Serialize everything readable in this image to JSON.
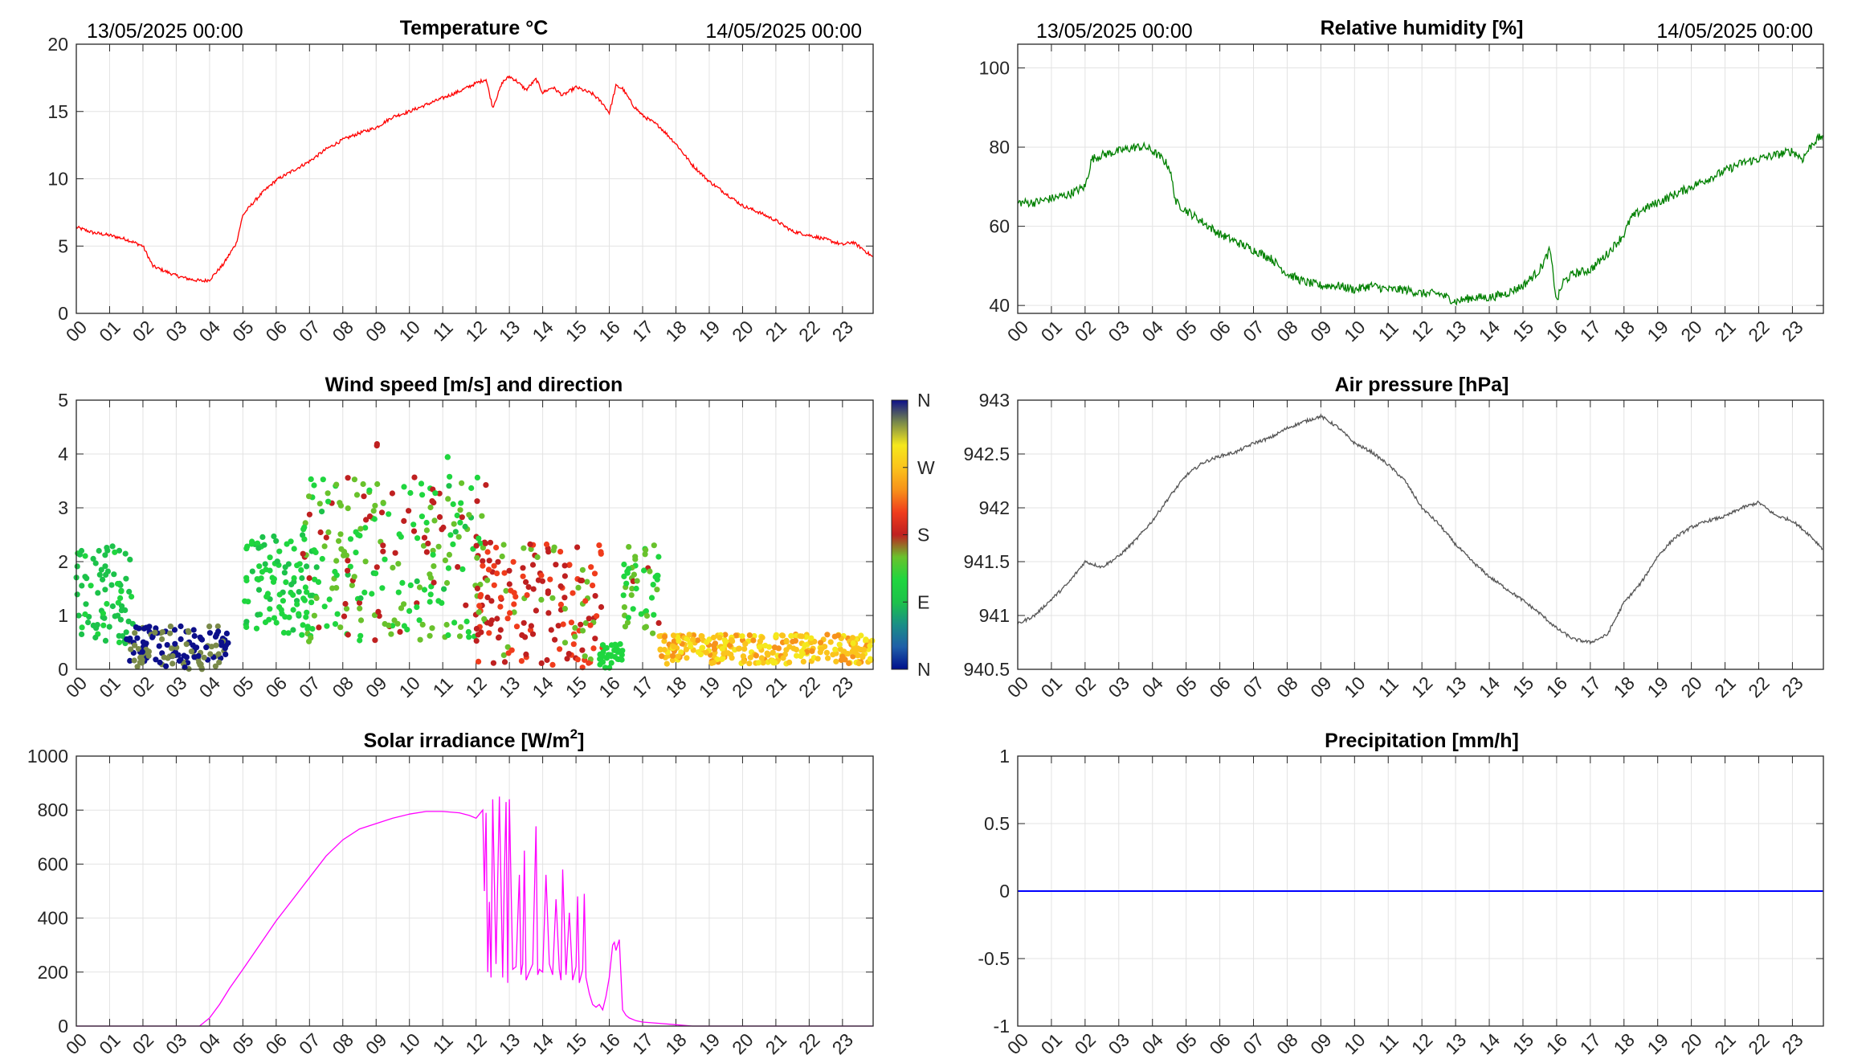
{
  "chart_data": [
    {
      "id": "temperature",
      "type": "line",
      "title": "Temperature °C",
      "date_start": "13/05/2025 00:00",
      "date_end": "14/05/2025 00:00",
      "x_unit": "hour",
      "xlim": [
        0,
        23.92
      ],
      "ylim": [
        0,
        20
      ],
      "yticks": [
        "0",
        "5",
        "10",
        "15",
        "20"
      ],
      "color": "#ff0000",
      "series": [
        {
          "x": [
            0,
            0.5,
            1,
            1.5,
            2,
            2.3,
            2.6,
            3,
            3.3,
            3.5,
            3.8,
            4,
            4.4,
            4.8,
            5,
            5.3,
            5.6,
            6,
            6.5,
            7,
            7.5,
            8,
            8.5,
            9,
            9.5,
            10,
            10.5,
            11,
            11.5,
            12,
            12.3,
            12.5,
            12.8,
            13,
            13.2,
            13.5,
            13.8,
            14,
            14.3,
            14.6,
            15,
            15.5,
            15.8,
            16,
            16.2,
            16.4,
            16.7,
            17,
            17.5,
            18,
            18.5,
            19,
            19.5,
            20,
            20.5,
            21,
            21.5,
            22,
            22.5,
            23,
            23.3,
            23.6,
            23.9
          ],
          "y": [
            6.4,
            6.0,
            5.8,
            5.5,
            5.0,
            3.5,
            3.2,
            2.8,
            2.6,
            2.5,
            2.4,
            2.5,
            3.6,
            5.2,
            7.3,
            8.2,
            9.0,
            9.9,
            10.6,
            11.3,
            12.2,
            12.9,
            13.4,
            13.8,
            14.6,
            15.0,
            15.5,
            16.0,
            16.5,
            17.1,
            17.4,
            15.3,
            17.2,
            17.6,
            17.3,
            16.6,
            17.4,
            16.4,
            16.8,
            16.2,
            16.8,
            16.3,
            15.6,
            14.9,
            16.9,
            16.7,
            15.5,
            14.7,
            13.9,
            12.6,
            11.0,
            9.8,
            8.9,
            8.0,
            7.5,
            6.9,
            6.1,
            5.8,
            5.5,
            5.1,
            5.3,
            4.8,
            4.2
          ]
        }
      ]
    },
    {
      "id": "humidity",
      "type": "line",
      "title": "Relative humidity [%]",
      "date_start": "13/05/2025 00:00",
      "date_end": "14/05/2025 00:00",
      "x_unit": "hour",
      "xlim": [
        0,
        23.92
      ],
      "ylim": [
        38,
        106
      ],
      "yticks": [
        "40",
        "60",
        "80",
        "100"
      ],
      "color": "#008000",
      "series": [
        {
          "x": [
            0,
            0.5,
            1,
            1.5,
            2,
            2.2,
            2.5,
            3,
            3.5,
            3.8,
            4,
            4.3,
            4.5,
            4.7,
            5,
            5.5,
            6,
            6.5,
            7,
            7.5,
            8,
            8.5,
            9,
            9.5,
            10,
            10.5,
            11,
            11.5,
            12,
            12.5,
            13,
            13.5,
            14,
            14.5,
            15,
            15.5,
            15.8,
            16,
            16.2,
            16.5,
            17,
            17.5,
            18,
            18.2,
            18.5,
            19,
            19.5,
            20,
            20.5,
            21,
            21.5,
            22,
            22.5,
            23,
            23.3,
            23.6,
            23.9
          ],
          "y": [
            66,
            66,
            67,
            68,
            70,
            77,
            78,
            79,
            80,
            80,
            79,
            77,
            75,
            66,
            64,
            61,
            58,
            56,
            54,
            52,
            48,
            46,
            45,
            45,
            44,
            45,
            44,
            44,
            43,
            43,
            41,
            42,
            42,
            43,
            45,
            49,
            54,
            41,
            46,
            48,
            49,
            53,
            58,
            62,
            64,
            66,
            68,
            70,
            72,
            74,
            76,
            77,
            78,
            79,
            77,
            81,
            83
          ]
        }
      ]
    },
    {
      "id": "wind",
      "type": "scatter",
      "title": "Wind speed [m/s] and direction",
      "x_unit": "hour",
      "xlim": [
        0,
        23.92
      ],
      "ylim": [
        0,
        5
      ],
      "yticks": [
        "0",
        "1",
        "2",
        "3",
        "4",
        "5"
      ],
      "colorbar": {
        "labels": [
          "N",
          "W",
          "S",
          "E",
          "N"
        ],
        "colors": [
          "#000f8c",
          "#1f5fa8",
          "#1a8f86",
          "#1cc24a",
          "#1fd63f",
          "#69c22c",
          "#bf2020",
          "#f03c1c",
          "#f7921a",
          "#fbc41c",
          "#f5e81c",
          "#7a8a4a",
          "#0c0f8a"
        ]
      },
      "segments": [
        {
          "x_start": 0.0,
          "x_end": 1.7,
          "y_min": 0.4,
          "y_max": 2.3,
          "dir_min": 80,
          "dir_max": 110
        },
        {
          "x_start": 1.5,
          "x_end": 4.6,
          "y_min": 0.0,
          "y_max": 0.8,
          "dir_min": 335,
          "dir_max": 355
        },
        {
          "x_start": 5.0,
          "x_end": 7.2,
          "y_min": 0.6,
          "y_max": 2.5,
          "dir_min": 95,
          "dir_max": 130
        },
        {
          "x_start": 6.8,
          "x_end": 12.3,
          "y_min": 0.5,
          "y_max": 3.6,
          "dir_min": 100,
          "dir_max": 185
        },
        {
          "x_start": 9.0,
          "x_end": 9.05,
          "y_min": 4.1,
          "y_max": 4.2,
          "dir_min": 170,
          "dir_max": 175
        },
        {
          "x_start": 11.1,
          "x_end": 11.15,
          "y_min": 3.9,
          "y_max": 4.0,
          "dir_min": 110,
          "dir_max": 115
        },
        {
          "x_start": 12.0,
          "x_end": 15.8,
          "y_min": 0.0,
          "y_max": 2.4,
          "dir_min": 150,
          "dir_max": 215
        },
        {
          "x_start": 15.7,
          "x_end": 16.4,
          "y_min": 0.0,
          "y_max": 0.5,
          "dir_min": 110,
          "dir_max": 120
        },
        {
          "x_start": 16.4,
          "x_end": 17.5,
          "y_min": 0.6,
          "y_max": 2.4,
          "dir_min": 105,
          "dir_max": 170
        },
        {
          "x_start": 17.5,
          "x_end": 23.9,
          "y_min": 0.1,
          "y_max": 0.65,
          "dir_min": 245,
          "dir_max": 300
        }
      ]
    },
    {
      "id": "pressure",
      "type": "line",
      "title": "Air pressure [hPa]",
      "x_unit": "hour",
      "xlim": [
        0,
        23.92
      ],
      "ylim": [
        940.5,
        943
      ],
      "yticks": [
        "940.5",
        "941",
        "941.5",
        "942",
        "942.5",
        "943"
      ],
      "color": "#555555",
      "series": [
        {
          "x": [
            0,
            0.5,
            1,
            1.5,
            2,
            2.5,
            3,
            3.5,
            4,
            4.5,
            5,
            5.5,
            6,
            6.5,
            7,
            7.5,
            8,
            8.5,
            9,
            9.5,
            10,
            10.5,
            11,
            11.5,
            12,
            12.5,
            13,
            13.5,
            14,
            14.5,
            15,
            15.5,
            16,
            16.5,
            17,
            17.5,
            18,
            18.5,
            19,
            19.5,
            20,
            20.5,
            21,
            21.5,
            22,
            22.5,
            23,
            23.5,
            23.9
          ],
          "y": [
            940.92,
            941.0,
            941.15,
            941.3,
            941.5,
            941.45,
            941.55,
            941.7,
            941.88,
            942.1,
            942.3,
            942.42,
            942.48,
            942.52,
            942.6,
            942.65,
            942.74,
            942.8,
            942.85,
            942.75,
            942.6,
            942.52,
            942.4,
            942.25,
            942.0,
            941.85,
            941.66,
            941.5,
            941.36,
            941.25,
            941.14,
            941.02,
            940.88,
            940.78,
            940.75,
            940.82,
            941.12,
            941.3,
            941.55,
            941.72,
            941.82,
            941.88,
            941.92,
            942.0,
            942.05,
            941.93,
            941.88,
            941.75,
            941.62
          ]
        }
      ]
    },
    {
      "id": "solar",
      "type": "line",
      "title": "Solar irradiance [W/m",
      "title_sup": "2",
      "title_end": "]",
      "x_unit": "hour",
      "xlim": [
        0,
        23.92
      ],
      "ylim": [
        0,
        1000
      ],
      "yticks": [
        "0",
        "200",
        "400",
        "600",
        "800",
        "1000"
      ],
      "color": "#ff00ff",
      "series": [
        {
          "x": [
            0,
            3.7,
            4.0,
            4.3,
            4.6,
            5.0,
            5.5,
            6.0,
            6.5,
            7.0,
            7.5,
            8.0,
            8.5,
            9.0,
            9.5,
            10.0,
            10.5,
            11.0,
            11.5,
            11.8,
            12.0,
            12.2,
            12.25,
            12.3,
            12.35,
            12.4,
            12.45,
            12.5,
            12.6,
            12.7,
            12.8,
            12.85,
            12.9,
            12.95,
            13.0,
            13.1,
            13.2,
            13.3,
            13.35,
            13.4,
            13.45,
            13.5,
            13.6,
            13.7,
            13.8,
            13.85,
            13.9,
            14.0,
            14.1,
            14.2,
            14.3,
            14.4,
            14.5,
            14.55,
            14.6,
            14.7,
            14.8,
            14.9,
            15.0,
            15.05,
            15.1,
            15.2,
            15.25,
            15.3,
            15.4,
            15.5,
            15.6,
            15.7,
            15.8,
            15.9,
            16.0,
            16.1,
            16.15,
            16.2,
            16.3,
            16.4,
            16.5,
            16.6,
            16.8,
            17.0,
            17.5,
            18.0,
            18.5,
            19.0,
            19.5,
            23.9
          ],
          "y": [
            0,
            0,
            30,
            80,
            140,
            210,
            300,
            390,
            470,
            550,
            630,
            690,
            730,
            750,
            770,
            785,
            795,
            795,
            790,
            780,
            770,
            800,
            500,
            790,
            200,
            460,
            180,
            840,
            230,
            850,
            180,
            560,
            830,
            160,
            840,
            210,
            220,
            560,
            190,
            230,
            650,
            170,
            200,
            230,
            740,
            190,
            210,
            200,
            560,
            230,
            190,
            470,
            210,
            170,
            580,
            190,
            420,
            170,
            220,
            480,
            160,
            210,
            490,
            180,
            120,
            80,
            70,
            80,
            60,
            110,
            180,
            300,
            310,
            280,
            320,
            60,
            40,
            30,
            20,
            15,
            10,
            5,
            0,
            0,
            0,
            0
          ]
        }
      ]
    },
    {
      "id": "precip",
      "type": "line",
      "title": "Precipitation [mm/h]",
      "x_unit": "hour",
      "xlim": [
        0,
        23.92
      ],
      "ylim": [
        -1,
        1
      ],
      "yticks": [
        "-1",
        "-0.5",
        "0",
        "0.5",
        "1"
      ],
      "color": "#0000ff",
      "series": [
        {
          "x": [
            0,
            23.9
          ],
          "y": [
            0,
            0
          ]
        }
      ]
    }
  ],
  "x_tick_labels": [
    "00",
    "01",
    "02",
    "03",
    "04",
    "05",
    "06",
    "07",
    "08",
    "09",
    "10",
    "11",
    "12",
    "13",
    "14",
    "15",
    "16",
    "17",
    "18",
    "19",
    "20",
    "21",
    "22",
    "23"
  ],
  "grid": true
}
